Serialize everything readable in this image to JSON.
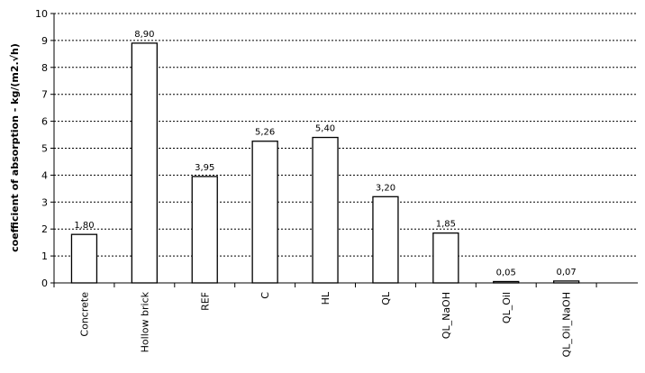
{
  "chart_data": {
    "type": "bar",
    "categories": [
      "Concrete",
      "Hollow brick",
      "REF",
      "C",
      "HL",
      "QL",
      "QL_NaOH",
      "QL_Oil",
      "QL_Oil_NaOH"
    ],
    "values": [
      1.8,
      8.9,
      3.95,
      5.26,
      5.4,
      3.2,
      1.85,
      0.05,
      0.07
    ],
    "data_labels": [
      "1,80",
      "8,90",
      "3,95",
      "5,26",
      "5,40",
      "3,20",
      "1,85",
      "0,05",
      "0,07"
    ],
    "title": "",
    "xlabel": "",
    "ylabel": "coefficient of absorption - kg/(m2.√h)",
    "ylim": [
      0,
      10
    ],
    "yticks": [
      0,
      1,
      2,
      3,
      4,
      5,
      6,
      7,
      8,
      9,
      10
    ],
    "grid": true,
    "legend": "none",
    "colors": {
      "bar_fill": "#ffffff",
      "bar_stroke": "#000000",
      "grid": "#000000"
    }
  }
}
